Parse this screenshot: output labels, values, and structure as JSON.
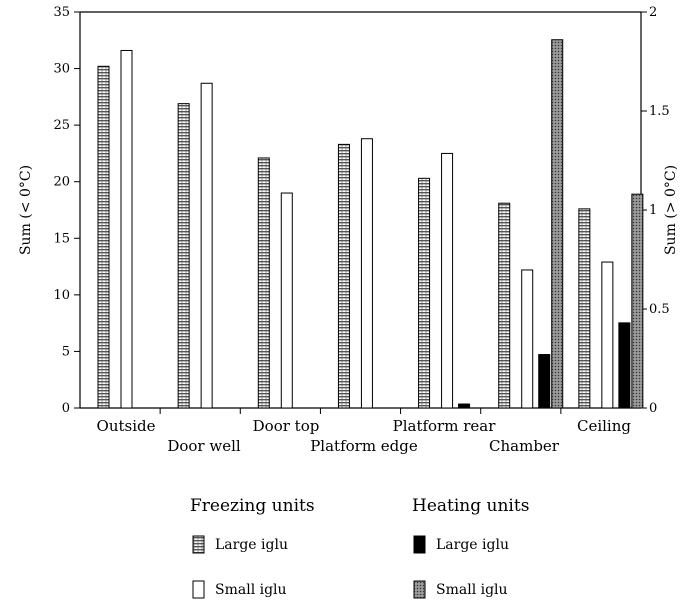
{
  "chart_data": {
    "type": "bar",
    "categories": [
      "Outside",
      "Door well",
      "Door top",
      "Platform edge",
      "Platform rear",
      "Chamber",
      "Ceiling"
    ],
    "series": [
      {
        "name": "Large iglu",
        "group": "Freezing units",
        "axis": "left",
        "values": [
          30.2,
          26.9,
          22.1,
          23.3,
          20.3,
          18.1,
          17.6
        ]
      },
      {
        "name": "Small iglu",
        "group": "Freezing units",
        "axis": "left",
        "values": [
          31.6,
          28.7,
          19.0,
          23.8,
          22.5,
          12.2,
          12.9
        ]
      },
      {
        "name": "Large iglu",
        "group": "Heating units",
        "axis": "right",
        "values": [
          0,
          0,
          0,
          0,
          0.02,
          0.27,
          0.43
        ]
      },
      {
        "name": "Small iglu",
        "group": "Heating units",
        "axis": "right",
        "values": [
          0,
          0,
          0,
          0,
          0,
          1.86,
          1.08
        ]
      }
    ],
    "ylabel": "Sum (< 0°C)",
    "ylabel_right": "Sum (> 0°C)",
    "ylim": [
      0,
      35
    ],
    "ylim_right": [
      0,
      2
    ],
    "yticks": [
      0,
      5,
      10,
      15,
      20,
      25,
      30,
      35
    ],
    "yticks_right": [
      0,
      0.5,
      1,
      1.5,
      2
    ],
    "ytick_labels_right": [
      "0",
      "0.5",
      "1",
      "1.5",
      "2"
    ],
    "grid": false,
    "legend": {
      "placement": "bottom",
      "groups": [
        {
          "title": "Freezing units",
          "entries": [
            "Large iglu",
            "Small iglu"
          ]
        },
        {
          "title": "Heating units",
          "entries": [
            "Large iglu",
            "Small iglu"
          ]
        }
      ]
    }
  }
}
